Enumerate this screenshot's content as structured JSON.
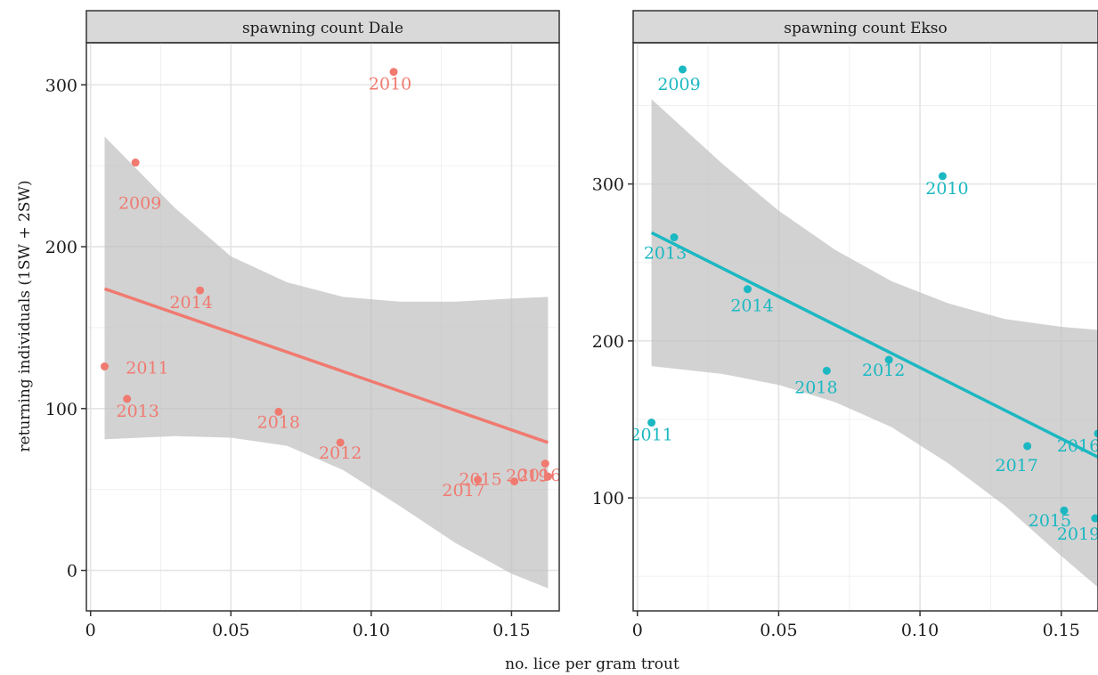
{
  "chart_data": {
    "type": "scatter",
    "xlabel": "no. lice per gram trout",
    "ylabel": "returning individuals (1SW + 2SW)",
    "grid": true,
    "legend": "none",
    "panels": [
      {
        "title": "spawning count Dale",
        "color": "#F07A70",
        "band_color": "#bfbfbf",
        "xlim": [
          -0.0015,
          0.167
        ],
        "ylim": [
          -25,
          326
        ],
        "x_ticks": [
          0,
          0.05,
          0.1,
          0.15
        ],
        "x_tick_labels": [
          "0",
          "0.05",
          "0.10",
          "0.15"
        ],
        "y_ticks": [
          0,
          100,
          200,
          300
        ],
        "y_tick_labels": [
          "0",
          "100",
          "200",
          "300"
        ],
        "points": [
          {
            "label": "2009",
            "x": 0.016,
            "y": 252
          },
          {
            "label": "2010",
            "x": 0.108,
            "y": 308
          },
          {
            "label": "2011",
            "x": 0.005,
            "y": 126
          },
          {
            "label": "2012",
            "x": 0.089,
            "y": 79
          },
          {
            "label": "2013",
            "x": 0.013,
            "y": 106
          },
          {
            "label": "2014",
            "x": 0.039,
            "y": 173
          },
          {
            "label": "2015",
            "x": 0.151,
            "y": 55
          },
          {
            "label": "2016",
            "x": 0.163,
            "y": 58
          },
          {
            "label": "2017",
            "x": 0.138,
            "y": 56
          },
          {
            "label": "2018",
            "x": 0.067,
            "y": 98
          },
          {
            "label": "2019",
            "x": 0.162,
            "y": 66
          }
        ],
        "fit": {
          "x": [
            0.005,
            0.163
          ],
          "y": [
            174,
            79
          ]
        },
        "band": [
          {
            "x": 0.005,
            "lo": 81,
            "hi": 268
          },
          {
            "x": 0.03,
            "lo": 83,
            "hi": 224
          },
          {
            "x": 0.05,
            "lo": 82,
            "hi": 194
          },
          {
            "x": 0.07,
            "lo": 77,
            "hi": 178
          },
          {
            "x": 0.09,
            "lo": 62,
            "hi": 169
          },
          {
            "x": 0.11,
            "lo": 40,
            "hi": 166
          },
          {
            "x": 0.13,
            "lo": 17,
            "hi": 166
          },
          {
            "x": 0.15,
            "lo": -2,
            "hi": 168
          },
          {
            "x": 0.163,
            "lo": -11,
            "hi": 169
          }
        ]
      },
      {
        "title": "spawning count Ekso",
        "color": "#1BB8C2",
        "band_color": "#bfbfbf",
        "xlim": [
          -0.0015,
          0.163
        ],
        "ylim": [
          28,
          390
        ],
        "x_ticks": [
          0,
          0.05,
          0.1,
          0.15
        ],
        "x_tick_labels": [
          "0",
          "0.05",
          "0.10",
          "0.15"
        ],
        "y_ticks": [
          100,
          200,
          300
        ],
        "y_tick_labels": [
          "100",
          "200",
          "300"
        ],
        "points": [
          {
            "label": "2009",
            "x": 0.016,
            "y": 373
          },
          {
            "label": "2010",
            "x": 0.108,
            "y": 305
          },
          {
            "label": "2011",
            "x": 0.005,
            "y": 148
          },
          {
            "label": "2012",
            "x": 0.089,
            "y": 188
          },
          {
            "label": "2013",
            "x": 0.013,
            "y": 266
          },
          {
            "label": "2014",
            "x": 0.039,
            "y": 233
          },
          {
            "label": "2015",
            "x": 0.151,
            "y": 92
          },
          {
            "label": "2016",
            "x": 0.163,
            "y": 141
          },
          {
            "label": "2017",
            "x": 0.138,
            "y": 133
          },
          {
            "label": "2018",
            "x": 0.067,
            "y": 181
          },
          {
            "label": "2019",
            "x": 0.162,
            "y": 87
          }
        ],
        "fit": {
          "x": [
            0.005,
            0.163
          ],
          "y": [
            269,
            126
          ]
        },
        "band": [
          {
            "x": 0.005,
            "lo": 184,
            "hi": 354
          },
          {
            "x": 0.03,
            "lo": 179,
            "hi": 313
          },
          {
            "x": 0.05,
            "lo": 172,
            "hi": 283
          },
          {
            "x": 0.07,
            "lo": 161,
            "hi": 258
          },
          {
            "x": 0.09,
            "lo": 145,
            "hi": 238
          },
          {
            "x": 0.11,
            "lo": 122,
            "hi": 224
          },
          {
            "x": 0.13,
            "lo": 95,
            "hi": 214
          },
          {
            "x": 0.15,
            "lo": 63,
            "hi": 209
          },
          {
            "x": 0.163,
            "lo": 43,
            "hi": 207
          }
        ]
      }
    ]
  }
}
